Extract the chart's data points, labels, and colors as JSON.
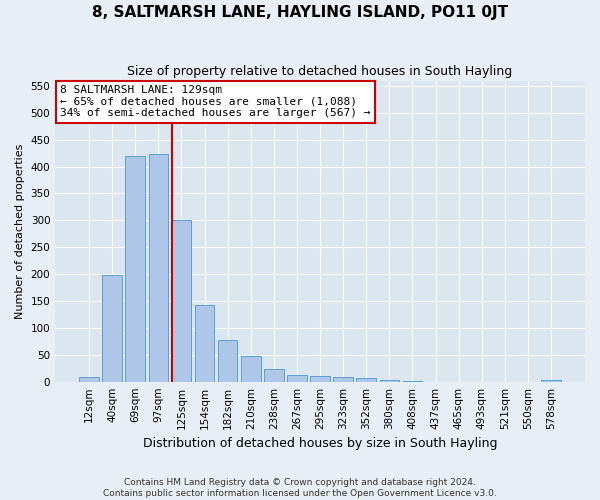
{
  "title": "8, SALTMARSH LANE, HAYLING ISLAND, PO11 0JT",
  "subtitle": "Size of property relative to detached houses in South Hayling",
  "xlabel": "Distribution of detached houses by size in South Hayling",
  "ylabel": "Number of detached properties",
  "footnote1": "Contains HM Land Registry data © Crown copyright and database right 2024.",
  "footnote2": "Contains public sector information licensed under the Open Government Licence v3.0.",
  "categories": [
    "12sqm",
    "40sqm",
    "69sqm",
    "97sqm",
    "125sqm",
    "154sqm",
    "182sqm",
    "210sqm",
    "238sqm",
    "267sqm",
    "295sqm",
    "323sqm",
    "352sqm",
    "380sqm",
    "408sqm",
    "437sqm",
    "465sqm",
    "493sqm",
    "521sqm",
    "550sqm",
    "578sqm"
  ],
  "values": [
    8,
    198,
    420,
    423,
    300,
    143,
    77,
    48,
    24,
    12,
    10,
    8,
    7,
    3,
    1,
    0,
    0,
    0,
    0,
    0,
    3
  ],
  "bar_color": "#aec6e8",
  "bar_edge_color": "#5a9fd4",
  "vline_color": "#cc0000",
  "annotation_text": "8 SALTMARSH LANE: 129sqm\n← 65% of detached houses are smaller (1,088)\n34% of semi-detached houses are larger (567) →",
  "annotation_box_color": "#ffffff",
  "annotation_box_edge": "#cc0000",
  "ylim": [
    0,
    560
  ],
  "yticks": [
    0,
    50,
    100,
    150,
    200,
    250,
    300,
    350,
    400,
    450,
    500,
    550
  ],
  "bg_color": "#e8eef5",
  "plot_bg_color": "#dce6f0",
  "title_fontsize": 11,
  "subtitle_fontsize": 9,
  "tick_fontsize": 7.5,
  "ylabel_fontsize": 8,
  "xlabel_fontsize": 9
}
